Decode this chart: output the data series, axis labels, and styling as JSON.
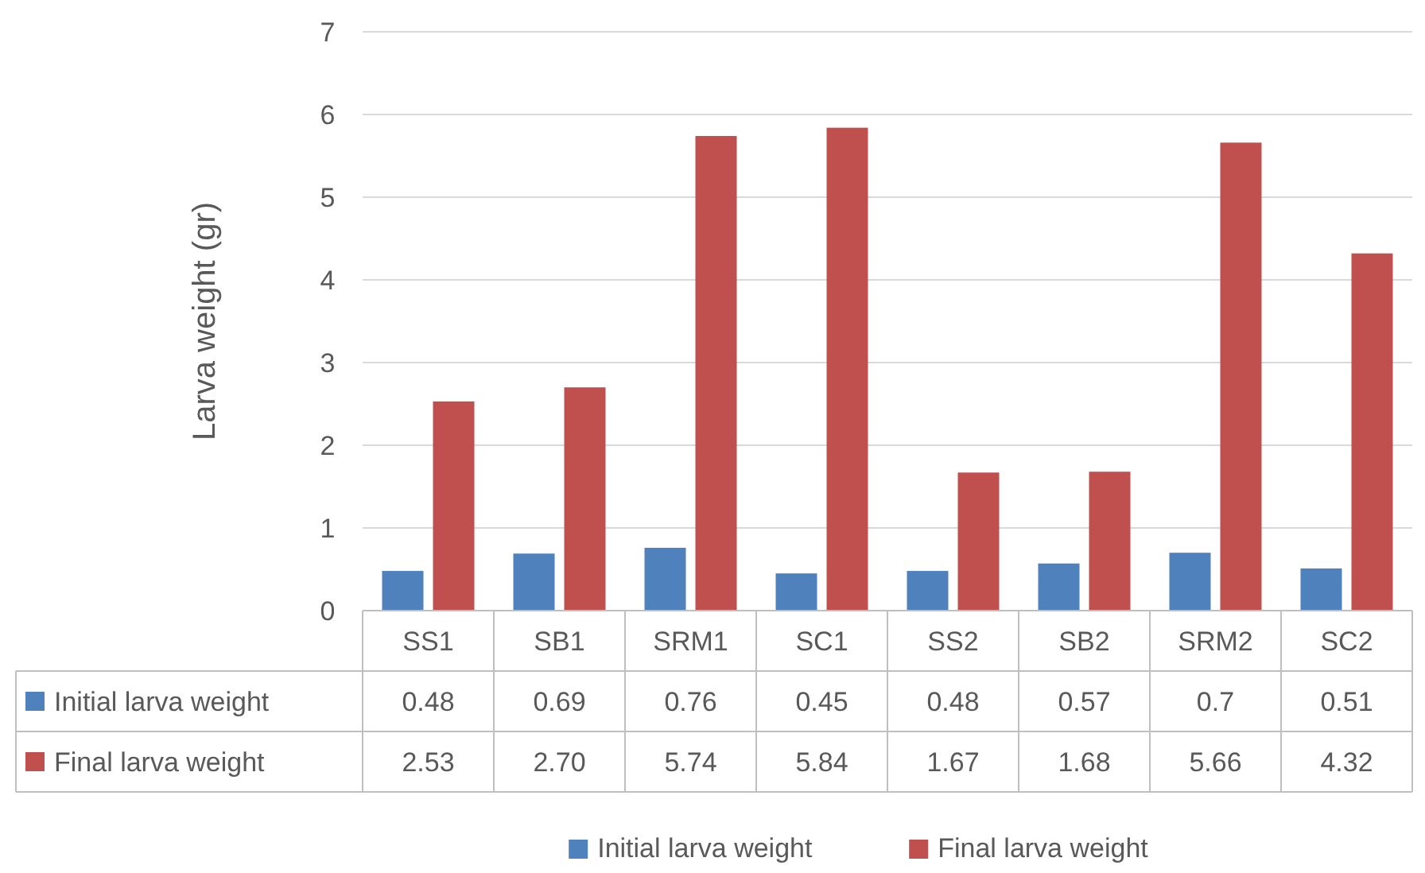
{
  "chart_data": {
    "type": "bar",
    "ylabel": "Larva weight (gr)",
    "categories": [
      "SS1",
      "SB1",
      "SRM1",
      "SC1",
      "SS2",
      "SB2",
      "SRM2",
      "SC2"
    ],
    "series": [
      {
        "name": "Initial larva weight",
        "color": "#4f81bd",
        "values": [
          0.48,
          0.69,
          0.76,
          0.45,
          0.48,
          0.57,
          0.7,
          0.51
        ],
        "value_labels": [
          "0.48",
          "0.69",
          "0.76",
          "0.45",
          "0.48",
          "0.57",
          "0.7",
          "0.51"
        ]
      },
      {
        "name": "Final larva weight",
        "color": "#c0504d",
        "values": [
          2.53,
          2.7,
          5.74,
          5.84,
          1.67,
          1.68,
          5.66,
          4.32
        ],
        "value_labels": [
          "2.53",
          "2.70",
          "5.74",
          "5.84",
          "1.67",
          "1.68",
          "5.66",
          "4.32"
        ]
      }
    ],
    "ylim": [
      0,
      7
    ],
    "yticks": [
      0,
      1,
      2,
      3,
      4,
      5,
      6,
      7
    ],
    "grid": true,
    "legend": "bottom"
  }
}
